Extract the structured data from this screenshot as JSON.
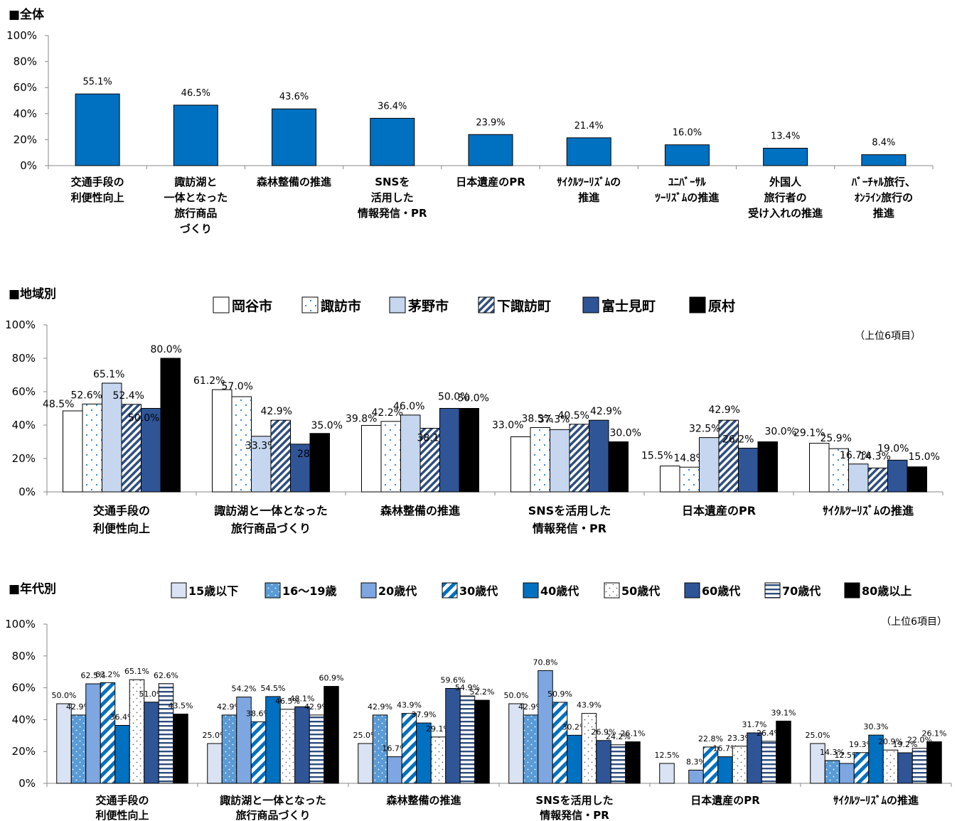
{
  "chart_data": [
    {
      "type": "bar",
      "title": "■全体",
      "yticks": [
        "0%",
        "20%",
        "40%",
        "60%",
        "80%",
        "100%"
      ],
      "ylim": [
        0,
        100
      ],
      "categories": [
        [
          "交通手段の",
          "利便性向上"
        ],
        [
          "諏訪湖と",
          "一体となった",
          "旅行商品",
          "づくり"
        ],
        [
          "森林整備の推進"
        ],
        [
          "SNSを",
          "活用した",
          "情報発信・PR"
        ],
        [
          "日本遺産のPR"
        ],
        [
          "ｻｲｸﾙﾂｰﾘｽﾞﾑの",
          "推進"
        ],
        [
          "ﾕﾆﾊﾞｰｻﾙ",
          "ﾂｰﾘｽﾞﾑの推進"
        ],
        [
          "外国人",
          "旅行者の",
          "受け入れの推進"
        ],
        [
          "ﾊﾞｰﾁｬﾙ旅行、",
          "ｵﾝﾗｲﾝ旅行の",
          "推進"
        ]
      ],
      "values": [
        55.1,
        46.5,
        43.6,
        36.4,
        23.9,
        21.4,
        16.0,
        13.4,
        8.4
      ],
      "labels": [
        "55.1%",
        "46.5%",
        "43.6%",
        "36.4%",
        "23.9%",
        "21.4%",
        "16.0%",
        "13.4%",
        "8.4%"
      ],
      "color": "#0070C0"
    },
    {
      "type": "bar",
      "title": "■地域別",
      "note": "（上位6項目）",
      "yticks": [
        "0%",
        "20%",
        "40%",
        "60%",
        "80%",
        "100%"
      ],
      "ylim": [
        0,
        100
      ],
      "categories": [
        [
          "交通手段の",
          "利便性向上"
        ],
        [
          "諏訪湖と一体となった",
          "旅行商品づくり"
        ],
        [
          "森林整備の推進"
        ],
        [
          "SNSを活用した",
          "情報発信・PR"
        ],
        [
          "日本遺産のPR"
        ],
        [
          "ｻｲｸﾙﾂｰﾘｽﾞﾑの推進"
        ]
      ],
      "series": [
        {
          "name": "岡谷市",
          "values": [
            48.5,
            61.2,
            39.8,
            33.0,
            15.5,
            29.1
          ],
          "labels": [
            "48.5%",
            "61.2%",
            "39.8%",
            "33.0%",
            "15.5%",
            "29.1%"
          ]
        },
        {
          "name": "諏訪市",
          "values": [
            52.6,
            57.0,
            42.2,
            38.5,
            14.8,
            25.9
          ],
          "labels": [
            "52.6%",
            "57.0%",
            "42.2%",
            "38.5%",
            "14.8%",
            "25.9%"
          ]
        },
        {
          "name": "茅野市",
          "values": [
            65.1,
            33.3,
            46.0,
            37.3,
            32.5,
            16.7
          ],
          "labels": [
            "65.1%",
            "33.3%",
            "46.0%",
            "37.3%",
            "32.5%",
            "16.7%"
          ]
        },
        {
          "name": "下諏訪町",
          "values": [
            52.4,
            42.9,
            38.1,
            40.5,
            42.9,
            14.3
          ],
          "labels": [
            "52.4%",
            "42.9%",
            "38.1%",
            "40.5%",
            "42.9%",
            "14.3%"
          ]
        },
        {
          "name": "富士見町",
          "values": [
            50.0,
            28.6,
            50.0,
            42.9,
            26.2,
            19.0
          ],
          "labels": [
            "50.0%",
            "28.6%",
            "50.0%",
            "42.9%",
            "26.2%",
            "19.0%"
          ]
        },
        {
          "name": "原村",
          "values": [
            80.0,
            35.0,
            50.0,
            30.0,
            30.0,
            15.0
          ],
          "labels": [
            "80.0%",
            "35.0%",
            "50.0%",
            "30.0%",
            "30.0%",
            "15.0%"
          ]
        }
      ]
    },
    {
      "type": "bar",
      "title": "■年代別",
      "note": "（上位6項目）",
      "yticks": [
        "0%",
        "20%",
        "40%",
        "60%",
        "80%",
        "100%"
      ],
      "ylim": [
        0,
        100
      ],
      "categories": [
        [
          "交通手段の",
          "利便性向上"
        ],
        [
          "諏訪湖と一体となった",
          "旅行商品づくり"
        ],
        [
          "森林整備の推進"
        ],
        [
          "SNSを活用した",
          "情報発信・PR"
        ],
        [
          "日本遺産のPR"
        ],
        [
          "ｻｲｸﾙﾂｰﾘｽﾞﾑの推進"
        ]
      ],
      "series": [
        {
          "name": "15歳以下",
          "values": [
            50.0,
            25.0,
            25.0,
            50.0,
            12.5,
            25.0
          ],
          "labels": [
            "50.0%",
            "25.0%",
            "25.0%",
            "50.0%",
            "12.5%",
            "25.0%"
          ]
        },
        {
          "name": "16～19歳",
          "values": [
            42.9,
            42.9,
            42.9,
            42.9,
            0,
            14.3
          ],
          "labels": [
            "42.9%",
            "42.9%",
            "42.9%",
            "42.9%",
            "",
            "14.3%"
          ]
        },
        {
          "name": "20歳代",
          "values": [
            62.5,
            54.2,
            16.7,
            70.8,
            8.3,
            12.5
          ],
          "labels": [
            "62.5%",
            "54.2%",
            "16.7%",
            "70.8%",
            "8.3%",
            "12.5%"
          ]
        },
        {
          "name": "30歳代",
          "values": [
            63.2,
            38.6,
            43.9,
            50.9,
            22.8,
            19.3
          ],
          "labels": [
            "63.2%",
            "38.6%",
            "43.9%",
            "50.9%",
            "22.8%",
            "19.3%"
          ]
        },
        {
          "name": "40歳代",
          "values": [
            36.4,
            54.5,
            37.9,
            30.2,
            16.7,
            30.3
          ],
          "labels": [
            "36.4%",
            "54.5%",
            "37.9%",
            "30.2%",
            "16.7%",
            "30.3%"
          ]
        },
        {
          "name": "50歳代",
          "values": [
            65.1,
            46.5,
            29.1,
            43.9,
            23.3,
            20.9
          ],
          "labels": [
            "65.1%",
            "46.5%",
            "29.1%",
            "43.9%",
            "23.3%",
            "20.9%"
          ]
        },
        {
          "name": "60歳代",
          "values": [
            51.0,
            48.1,
            59.6,
            26.9,
            31.7,
            19.2
          ],
          "labels": [
            "51.0%",
            "48.1%",
            "59.6%",
            "26.9%",
            "31.7%",
            "19.2%"
          ]
        },
        {
          "name": "70歳代",
          "values": [
            62.6,
            42.9,
            54.9,
            24.2,
            26.4,
            22.0
          ],
          "labels": [
            "62.6%",
            "42.9%",
            "54.9%",
            "24.2%",
            "26.4%",
            "22.0%"
          ]
        },
        {
          "name": "80歳以上",
          "values": [
            43.5,
            60.9,
            52.2,
            26.1,
            39.1,
            26.1
          ],
          "labels": [
            "43.5%",
            "60.9%",
            "52.2%",
            "26.1%",
            "39.1%",
            "26.1%"
          ]
        }
      ]
    }
  ]
}
